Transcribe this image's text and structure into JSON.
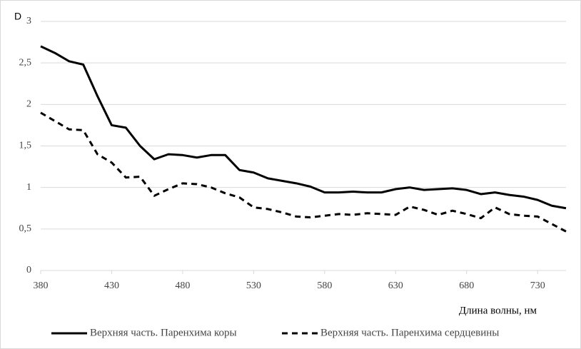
{
  "chart_data": {
    "type": "line",
    "y_label": "D",
    "x_label": "Длина волны, нм",
    "x": [
      380,
      390,
      400,
      410,
      420,
      430,
      440,
      450,
      460,
      470,
      480,
      490,
      500,
      510,
      520,
      530,
      540,
      550,
      560,
      570,
      580,
      590,
      600,
      610,
      620,
      630,
      640,
      650,
      660,
      670,
      680,
      690,
      700,
      710,
      720,
      730,
      740,
      750
    ],
    "series": [
      {
        "name": "Верхняя часть. Паренхима коры",
        "color": "#000000",
        "dash": "none",
        "values": [
          2.7,
          2.62,
          2.52,
          2.48,
          2.1,
          1.75,
          1.72,
          1.5,
          1.34,
          1.4,
          1.39,
          1.36,
          1.39,
          1.39,
          1.21,
          1.18,
          1.11,
          1.08,
          1.05,
          1.01,
          0.94,
          0.94,
          0.95,
          0.94,
          0.94,
          0.98,
          1.0,
          0.97,
          0.98,
          0.99,
          0.97,
          0.92,
          0.94,
          0.91,
          0.89,
          0.85,
          0.78,
          0.75
        ]
      },
      {
        "name": "Верхняя часть. Паренхима сердцевины",
        "color": "#000000",
        "dash": "8 6",
        "values": [
          1.9,
          1.8,
          1.7,
          1.69,
          1.4,
          1.3,
          1.12,
          1.13,
          0.9,
          0.98,
          1.05,
          1.04,
          1.0,
          0.93,
          0.88,
          0.76,
          0.74,
          0.7,
          0.65,
          0.64,
          0.66,
          0.68,
          0.67,
          0.69,
          0.68,
          0.67,
          0.77,
          0.73,
          0.67,
          0.72,
          0.68,
          0.63,
          0.76,
          0.68,
          0.66,
          0.65,
          0.56,
          0.47
        ]
      }
    ],
    "xlim": [
      380,
      750
    ],
    "xticks": [
      380,
      430,
      480,
      530,
      580,
      630,
      680,
      730
    ],
    "ylim": [
      0,
      3
    ],
    "yticks": [
      0,
      {
        "value": 0.5,
        "label": "0,5"
      },
      1,
      {
        "value": 1.5,
        "label": "1,5"
      },
      2,
      {
        "value": 2.5,
        "label": "2,5"
      },
      3
    ],
    "grid": true
  }
}
